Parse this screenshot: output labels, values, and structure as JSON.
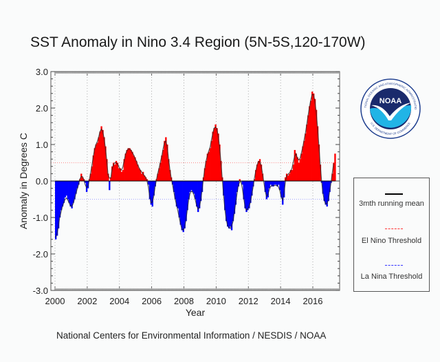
{
  "title": "SST Anomaly in Nino 3.4 Region (5N-5S,120-170W)",
  "footer": "National Centers for Environmental Information / NESDIS / NOAA",
  "logo": {
    "name": "noaa-logo",
    "text": "NOAA",
    "ring_text_top": "NATIONAL OCEANIC AND ATMOSPHERIC ADMINISTRATION",
    "ring_text_bottom": "U.S. DEPARTMENT OF COMMERCE"
  },
  "legend": {
    "items": [
      {
        "label": "3mth running mean",
        "color": "#000000",
        "style": "solid"
      },
      {
        "label": "El Nino Threshold",
        "color": "#ff3333",
        "style": "dashed"
      },
      {
        "label": "La Nina Threshold",
        "color": "#3333ff",
        "style": "dashed"
      }
    ]
  },
  "chart_data": {
    "type": "bar",
    "title": "SST Anomaly in Nino 3.4 Region (5N-5S,120-170W)",
    "xlabel": "Year",
    "ylabel": "Anomaly in Degrees C",
    "xlim": [
      2000,
      2017.75
    ],
    "ylim": [
      -3.0,
      3.0
    ],
    "yticks": [
      "3.0",
      "2.0",
      "1.0",
      "0.0",
      "-1.0",
      "-2.0",
      "-3.0"
    ],
    "ytick_values": [
      3,
      2,
      1,
      0,
      -1,
      -2,
      -3
    ],
    "xticks": [
      "2000",
      "2002",
      "2004",
      "2006",
      "2008",
      "2010",
      "2012",
      "2014",
      "2016"
    ],
    "xtick_values": [
      2000,
      2002,
      2004,
      2006,
      2008,
      2010,
      2012,
      2014,
      2016
    ],
    "grid": "vertical dotted at x ticks",
    "thresholds": {
      "el_nino": 0.5,
      "la_nina": -0.5
    },
    "positive_color": "#ff0000",
    "negative_color": "#0000ff",
    "start": "2000-01",
    "frequency": "monthly",
    "values": [
      -1.6,
      -1.5,
      -1.3,
      -1.0,
      -0.8,
      -0.7,
      -0.6,
      -0.45,
      -0.4,
      -0.5,
      -0.6,
      -0.7,
      -0.75,
      -0.6,
      -0.5,
      -0.35,
      -0.2,
      -0.1,
      0.05,
      0.2,
      0.1,
      0.05,
      -0.05,
      -0.3,
      -0.2,
      0.05,
      0.2,
      0.4,
      0.7,
      0.9,
      1.0,
      1.05,
      1.2,
      1.35,
      1.5,
      1.4,
      1.2,
      0.95,
      0.6,
      0.2,
      -0.25,
      0.1,
      0.4,
      0.5,
      0.45,
      0.55,
      0.5,
      0.35,
      0.35,
      0.25,
      0.3,
      0.6,
      0.75,
      0.85,
      0.9,
      0.9,
      0.85,
      0.8,
      0.7,
      0.65,
      0.55,
      0.45,
      0.35,
      0.3,
      0.2,
      0.25,
      0.15,
      0.1,
      0.05,
      -0.1,
      -0.5,
      -0.65,
      -0.7,
      -0.4,
      -0.15,
      0.05,
      0.2,
      0.35,
      0.5,
      0.7,
      0.85,
      1.1,
      1.2,
      1.0,
      0.6,
      0.3,
      0.1,
      -0.1,
      -0.3,
      -0.5,
      -0.7,
      -0.75,
      -1.0,
      -1.2,
      -1.35,
      -1.4,
      -1.3,
      -1.1,
      -0.8,
      -0.5,
      -0.3,
      -0.25,
      -0.3,
      -0.35,
      -0.5,
      -0.7,
      -0.85,
      -0.75,
      -0.55,
      -0.3,
      0.1,
      0.35,
      0.55,
      0.75,
      0.8,
      0.9,
      1.1,
      1.35,
      1.45,
      1.55,
      1.45,
      1.3,
      1.0,
      0.55,
      0.1,
      -0.4,
      -0.8,
      -1.1,
      -1.25,
      -1.3,
      -1.25,
      -1.35,
      -1.1,
      -0.9,
      -0.65,
      -0.3,
      -0.15,
      0.05,
      0.0,
      -0.1,
      -0.5,
      -0.75,
      -0.85,
      -0.8,
      -0.75,
      -0.6,
      -0.4,
      -0.15,
      0.05,
      0.3,
      0.45,
      0.55,
      0.6,
      0.45,
      0.2,
      0.0,
      -0.3,
      -0.5,
      -0.45,
      -0.2,
      -0.1,
      -0.15,
      -0.15,
      -0.1,
      -0.1,
      -0.15,
      -0.1,
      -0.25,
      -0.45,
      -0.65,
      -0.45,
      0.1,
      0.2,
      0.15,
      0.2,
      0.3,
      0.3,
      0.45,
      0.85,
      0.75,
      0.65,
      0.5,
      0.6,
      0.75,
      0.95,
      1.1,
      1.3,
      1.55,
      1.8,
      2.05,
      2.2,
      2.45,
      2.4,
      2.25,
      1.95,
      1.5,
      1.0,
      0.45,
      -0.05,
      -0.35,
      -0.55,
      -0.65,
      -0.7,
      -0.55,
      -0.3,
      -0.05,
      0.2,
      0.5,
      0.75
    ],
    "running_mean": [
      -1.55,
      -1.45,
      -1.25,
      -1.0,
      -0.85,
      -0.7,
      -0.6,
      -0.5,
      -0.47,
      -0.52,
      -0.6,
      -0.68,
      -0.7,
      -0.62,
      -0.5,
      -0.35,
      -0.22,
      -0.1,
      0.05,
      0.12,
      0.12,
      0.03,
      -0.1,
      -0.18,
      -0.15,
      0.02,
      0.22,
      0.43,
      0.67,
      0.87,
      1.0,
      1.08,
      1.2,
      1.35,
      1.42,
      1.37,
      1.18,
      0.92,
      0.58,
      0.18,
      0.08,
      0.08,
      0.32,
      0.45,
      0.5,
      0.5,
      0.47,
      0.4,
      0.32,
      0.3,
      0.38,
      0.55,
      0.73,
      0.83,
      0.88,
      0.88,
      0.85,
      0.78,
      0.72,
      0.63,
      0.55,
      0.45,
      0.37,
      0.3,
      0.25,
      0.2,
      0.15,
      0.1,
      0.0,
      -0.15,
      -0.42,
      -0.6,
      -0.58,
      -0.42,
      -0.17,
      0.03,
      0.2,
      0.35,
      0.52,
      0.68,
      0.88,
      1.05,
      1.1,
      0.95,
      0.63,
      0.33,
      0.1,
      -0.1,
      -0.3,
      -0.5,
      -0.65,
      -0.82,
      -1.0,
      -1.18,
      -1.32,
      -1.35,
      -1.27,
      -1.07,
      -0.8,
      -0.53,
      -0.35,
      -0.28,
      -0.3,
      -0.38,
      -0.52,
      -0.68,
      -0.77,
      -0.72,
      -0.53,
      -0.25,
      0.05,
      0.33,
      0.55,
      0.7,
      0.82,
      0.93,
      1.12,
      1.3,
      1.45,
      1.48,
      1.43,
      1.25,
      0.95,
      0.55,
      0.08,
      -0.37,
      -0.77,
      -1.05,
      -1.22,
      -1.27,
      -1.3,
      -1.23,
      -1.12,
      -0.88,
      -0.62,
      -0.37,
      -0.13,
      -0.03,
      -0.02,
      -0.2,
      -0.45,
      -0.7,
      -0.8,
      -0.77,
      -0.7,
      -0.58,
      -0.38,
      -0.17,
      0.07,
      0.27,
      0.43,
      0.53,
      0.53,
      0.42,
      0.22,
      -0.03,
      -0.27,
      -0.42,
      -0.38,
      -0.25,
      -0.15,
      -0.13,
      -0.13,
      -0.12,
      -0.12,
      -0.12,
      -0.17,
      -0.27,
      -0.45,
      -0.52,
      -0.33,
      -0.05,
      0.15,
      0.18,
      0.22,
      0.27,
      0.35,
      0.53,
      0.68,
      0.75,
      0.63,
      0.58,
      0.62,
      0.77,
      0.93,
      1.12,
      1.32,
      1.55,
      1.8,
      2.02,
      2.23,
      2.37,
      2.37,
      2.2,
      1.9,
      1.48,
      0.98,
      0.47,
      0.02,
      -0.32,
      -0.52,
      -0.63,
      -0.63,
      -0.52,
      -0.3,
      -0.05,
      0.22,
      0.48
    ]
  }
}
